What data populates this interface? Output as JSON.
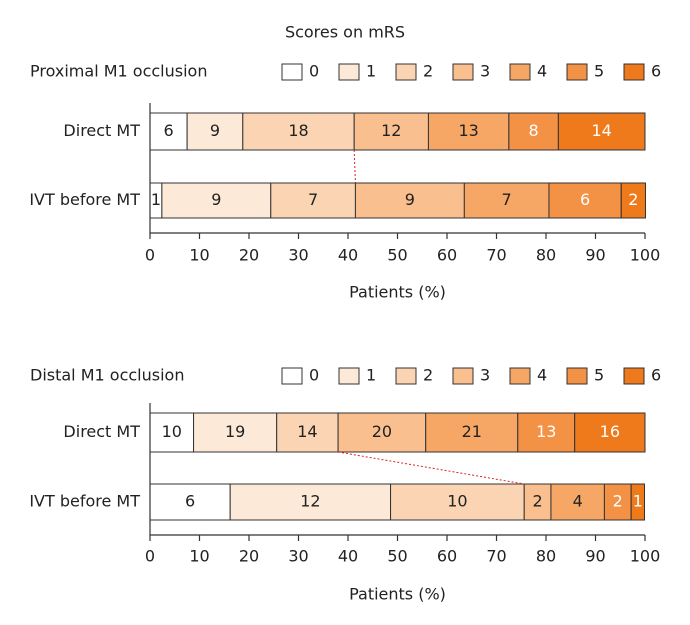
{
  "chart_data": [
    {
      "type": "stacked-bar-horizontal",
      "legend_title": "Scores on mRS",
      "title": "Proximal M1 occlusion",
      "categories": [
        "Direct MT",
        "IVT before MT"
      ],
      "xlabel": "Patients (%)",
      "xlim": [
        0,
        100
      ],
      "xticks": [
        0,
        10,
        20,
        30,
        40,
        50,
        60,
        70,
        80,
        90,
        100
      ],
      "series": [
        {
          "name": "0",
          "color": "#ffffff",
          "label_color": "#222222",
          "values": [
            7.5,
            2.4
          ],
          "counts": [
            6,
            1
          ]
        },
        {
          "name": "1",
          "color": "#fde9d8",
          "label_color": "#222222",
          "values": [
            11.25,
            22.0
          ],
          "counts": [
            9,
            9
          ]
        },
        {
          "name": "2",
          "color": "#fbd5b3",
          "label_color": "#222222",
          "values": [
            22.5,
            17.1
          ],
          "counts": [
            18,
            7
          ]
        },
        {
          "name": "3",
          "color": "#f9bf8e",
          "label_color": "#222222",
          "values": [
            15,
            22.0
          ],
          "counts": [
            12,
            9
          ]
        },
        {
          "name": "4",
          "color": "#f6a766",
          "label_color": "#222222",
          "values": [
            16.25,
            17.1
          ],
          "counts": [
            13,
            7
          ]
        },
        {
          "name": "5",
          "color": "#f39144",
          "label_color": "#ffffff",
          "values": [
            10,
            14.6
          ],
          "counts": [
            8,
            6
          ]
        },
        {
          "name": "6",
          "color": "#ee7a1c",
          "label_color": "#ffffff",
          "values": [
            17.5,
            4.9
          ],
          "counts": [
            14,
            2
          ]
        }
      ]
    },
    {
      "type": "stacked-bar-horizontal",
      "title": "Distal M1 occlusion",
      "categories": [
        "Direct MT",
        "IVT before MT"
      ],
      "xlabel": "Patients (%)",
      "xlim": [
        0,
        100
      ],
      "xticks": [
        0,
        10,
        20,
        30,
        40,
        50,
        60,
        70,
        80,
        90,
        100
      ],
      "series": [
        {
          "name": "0",
          "color": "#ffffff",
          "label_color": "#222222",
          "values": [
            8.8,
            16.2
          ],
          "counts": [
            10,
            6
          ]
        },
        {
          "name": "1",
          "color": "#fde9d8",
          "label_color": "#222222",
          "values": [
            16.8,
            32.4
          ],
          "counts": [
            19,
            12
          ]
        },
        {
          "name": "2",
          "color": "#fbd5b3",
          "label_color": "#222222",
          "values": [
            12.4,
            27.0
          ],
          "counts": [
            14,
            10
          ]
        },
        {
          "name": "3",
          "color": "#f9bf8e",
          "label_color": "#222222",
          "values": [
            17.7,
            5.4
          ],
          "counts": [
            20,
            2
          ]
        },
        {
          "name": "4",
          "color": "#f6a766",
          "label_color": "#222222",
          "values": [
            18.6,
            10.8
          ],
          "counts": [
            21,
            4
          ]
        },
        {
          "name": "5",
          "color": "#f39144",
          "label_color": "#ffffff",
          "values": [
            11.5,
            5.4
          ],
          "counts": [
            13,
            2
          ]
        },
        {
          "name": "6",
          "color": "#ee7a1c",
          "label_color": "#ffffff",
          "values": [
            14.2,
            2.7
          ],
          "counts": [
            16,
            1
          ]
        }
      ]
    }
  ]
}
